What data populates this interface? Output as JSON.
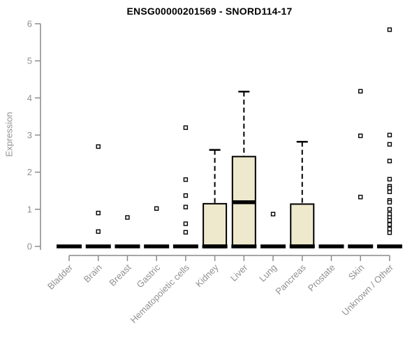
{
  "page": {
    "background": "#ffffff"
  },
  "chart_data": {
    "type": "boxplot",
    "title": "ENSG00000201569 - SNORD114-17",
    "ylabel": "Expression",
    "xlabel": "",
    "ylim": [
      0,
      6
    ],
    "yticks": [
      0,
      1,
      2,
      3,
      4,
      5,
      6
    ],
    "grid": false,
    "legend": "none",
    "axis_color": "#8a8a8a",
    "tick_label_color": "#919191",
    "title_color": "#000000",
    "box_fill": "#EEE8CD",
    "box_stroke": "#000000",
    "categories": [
      "Bladder",
      "Brain",
      "Breast",
      "Gastric",
      "Hematopoietic cells",
      "Kidney",
      "Liver",
      "Lung",
      "Pancreas",
      "Prostate",
      "Skin",
      "Unknown / Other"
    ],
    "series": [
      {
        "category": "Bladder",
        "q1": 0,
        "median": 0,
        "q3": 0,
        "whisker_low": 0,
        "whisker_high": 0,
        "outliers": []
      },
      {
        "category": "Brain",
        "q1": 0,
        "median": 0,
        "q3": 0,
        "whisker_low": 0,
        "whisker_high": 0,
        "outliers": [
          2.69,
          0.9,
          0.4
        ]
      },
      {
        "category": "Breast",
        "q1": 0,
        "median": 0,
        "q3": 0,
        "whisker_low": 0,
        "whisker_high": 0,
        "outliers": [
          0.78
        ]
      },
      {
        "category": "Gastric",
        "q1": 0,
        "median": 0,
        "q3": 0,
        "whisker_low": 0,
        "whisker_high": 0,
        "outliers": [
          1.02
        ]
      },
      {
        "category": "Hematopoietic cells",
        "q1": 0,
        "median": 0,
        "q3": 0,
        "whisker_low": 0,
        "whisker_high": 0,
        "outliers": [
          3.2,
          1.8,
          1.37,
          1.06,
          0.61,
          0.38
        ]
      },
      {
        "category": "Kidney",
        "q1": 0,
        "median": 0,
        "q3": 1.15,
        "whisker_low": 0,
        "whisker_high": 2.6,
        "outliers": []
      },
      {
        "category": "Liver",
        "q1": 0,
        "median": 1.19,
        "q3": 2.42,
        "whisker_low": 0,
        "whisker_high": 4.17,
        "outliers": []
      },
      {
        "category": "Lung",
        "q1": 0,
        "median": 0,
        "q3": 0,
        "whisker_low": 0,
        "whisker_high": 0,
        "outliers": [
          0.87
        ]
      },
      {
        "category": "Pancreas",
        "q1": 0,
        "median": 0,
        "q3": 1.14,
        "whisker_low": 0,
        "whisker_high": 2.82,
        "outliers": []
      },
      {
        "category": "Prostate",
        "q1": 0,
        "median": 0,
        "q3": 0,
        "whisker_low": 0,
        "whisker_high": 0,
        "outliers": []
      },
      {
        "category": "Skin",
        "q1": 0,
        "median": 0,
        "q3": 0,
        "whisker_low": 0,
        "whisker_high": 0,
        "outliers": [
          4.18,
          2.98,
          1.33
        ]
      },
      {
        "category": "Unknown / Other",
        "q1": 0,
        "median": 0,
        "q3": 0,
        "whisker_low": 0,
        "whisker_high": 0,
        "outliers": [
          5.84,
          3.0,
          2.75,
          2.3,
          1.81,
          1.62,
          1.57,
          1.47,
          1.24,
          1.19,
          1.0,
          0.87,
          0.78,
          0.7,
          0.59,
          0.47,
          0.37
        ]
      }
    ]
  }
}
